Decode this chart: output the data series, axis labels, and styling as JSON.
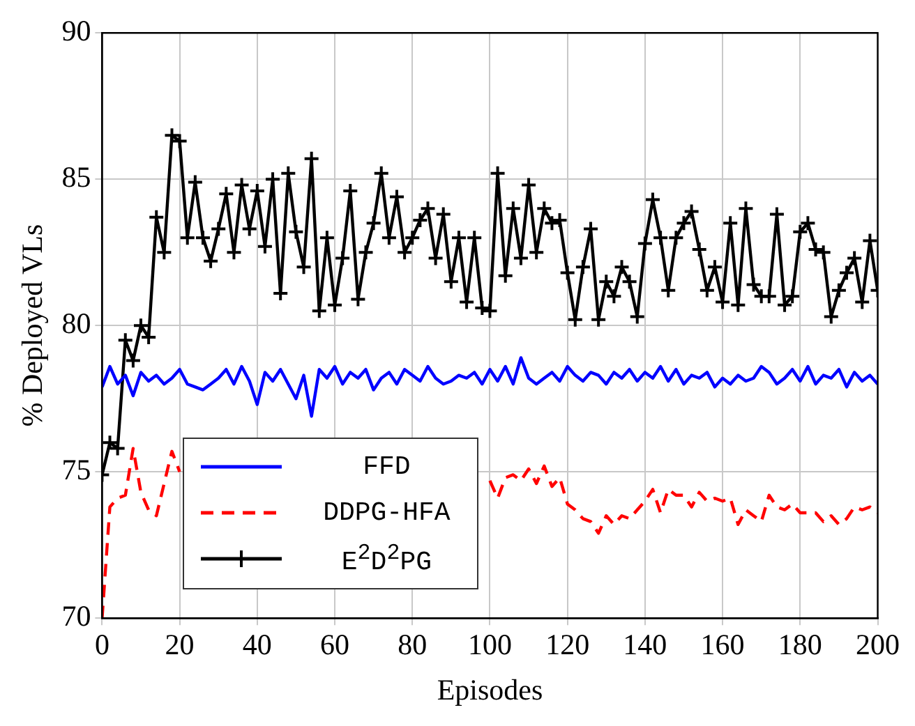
{
  "chart_data": {
    "type": "line",
    "xlabel": "Episodes",
    "ylabel": "% Deployed VLs",
    "x": [
      0,
      2,
      4,
      6,
      8,
      10,
      12,
      14,
      16,
      18,
      20,
      22,
      24,
      26,
      28,
      30,
      32,
      34,
      36,
      38,
      40,
      42,
      44,
      46,
      48,
      50,
      52,
      54,
      56,
      58,
      60,
      62,
      64,
      66,
      68,
      70,
      72,
      74,
      76,
      78,
      80,
      82,
      84,
      86,
      88,
      90,
      92,
      94,
      96,
      98,
      100,
      102,
      104,
      106,
      108,
      110,
      112,
      114,
      116,
      118,
      120,
      122,
      124,
      126,
      128,
      130,
      132,
      134,
      136,
      138,
      140,
      142,
      144,
      146,
      148,
      150,
      152,
      154,
      156,
      158,
      160,
      162,
      164,
      166,
      168,
      170,
      172,
      174,
      176,
      178,
      180,
      182,
      184,
      186,
      188,
      190,
      192,
      194,
      196,
      198,
      200
    ],
    "series": [
      {
        "name": "FFD",
        "color": "#0000ff",
        "marker": "none",
        "line_style": "solid",
        "values": [
          77.9,
          78.6,
          78.0,
          78.3,
          77.6,
          78.4,
          78.1,
          78.3,
          78.0,
          78.2,
          78.5,
          78.0,
          77.9,
          77.8,
          78.0,
          78.2,
          78.5,
          78.0,
          78.6,
          78.1,
          77.3,
          78.4,
          78.1,
          78.5,
          78.0,
          77.5,
          78.3,
          76.9,
          78.5,
          78.2,
          78.6,
          78.0,
          78.4,
          78.2,
          78.5,
          77.8,
          78.2,
          78.4,
          78.0,
          78.5,
          78.3,
          78.1,
          78.6,
          78.2,
          78.0,
          78.1,
          78.3,
          78.2,
          78.4,
          78.0,
          78.5,
          78.1,
          78.6,
          78.0,
          78.9,
          78.2,
          78.0,
          78.2,
          78.4,
          78.1,
          78.6,
          78.3,
          78.1,
          78.4,
          78.3,
          78.0,
          78.4,
          78.2,
          78.5,
          78.1,
          78.4,
          78.2,
          78.6,
          78.1,
          78.5,
          78.0,
          78.3,
          78.2,
          78.4,
          77.9,
          78.2,
          78.0,
          78.3,
          78.1,
          78.2,
          78.6,
          78.4,
          78.0,
          78.2,
          78.5,
          78.1,
          78.6,
          78.0,
          78.3,
          78.2,
          78.5,
          77.9,
          78.4,
          78.1,
          78.3,
          78.0
        ]
      },
      {
        "name": "DDPG-HFA",
        "color": "#ff0000",
        "marker": "none",
        "line_style": "dashed",
        "values": [
          70.0,
          73.8,
          74.1,
          74.2,
          75.8,
          74.3,
          73.7,
          73.5,
          74.6,
          75.7,
          75.0,
          null,
          null,
          null,
          null,
          null,
          null,
          null,
          null,
          null,
          null,
          null,
          null,
          null,
          null,
          null,
          null,
          null,
          null,
          null,
          null,
          null,
          null,
          null,
          null,
          null,
          null,
          null,
          null,
          null,
          null,
          null,
          null,
          null,
          null,
          null,
          null,
          null,
          null,
          null,
          74.7,
          74.1,
          74.8,
          74.9,
          74.7,
          75.1,
          74.6,
          75.2,
          74.5,
          74.8,
          73.9,
          73.7,
          73.4,
          73.3,
          72.9,
          73.5,
          73.2,
          73.5,
          73.4,
          73.7,
          74.0,
          74.4,
          73.6,
          74.4,
          74.2,
          74.2,
          73.8,
          74.3,
          74.0,
          74.1,
          74.0,
          74.1,
          73.2,
          73.7,
          73.5,
          73.3,
          74.2,
          73.8,
          73.7,
          73.9,
          73.6,
          73.6,
          73.6,
          73.3,
          73.5,
          73.2,
          73.4,
          73.8,
          73.7,
          73.8,
          73.6
        ]
      },
      {
        "name": "E$^{2}$D$^{2}$PG",
        "color": "#000000",
        "marker": "cross",
        "line_style": "solid",
        "values": [
          74.9,
          76.0,
          75.8,
          79.5,
          78.8,
          80.0,
          79.6,
          83.7,
          82.5,
          86.5,
          86.3,
          83.0,
          84.9,
          83.0,
          82.2,
          83.3,
          84.5,
          82.5,
          84.8,
          83.3,
          84.6,
          82.7,
          85.0,
          81.1,
          85.2,
          83.2,
          82.0,
          85.7,
          80.5,
          83.0,
          80.7,
          82.3,
          84.6,
          80.9,
          82.5,
          83.5,
          85.2,
          83.0,
          84.4,
          82.5,
          83.0,
          83.6,
          84.0,
          82.3,
          83.8,
          81.5,
          83.0,
          80.8,
          83.0,
          80.6,
          80.5,
          85.2,
          81.7,
          84.0,
          82.3,
          84.8,
          82.5,
          84.0,
          83.5,
          83.6,
          81.8,
          80.2,
          82.0,
          83.3,
          80.2,
          81.5,
          81.0,
          82.0,
          81.5,
          80.3,
          82.8,
          84.3,
          83.0,
          81.2,
          83.0,
          83.5,
          83.9,
          82.6,
          81.2,
          82.0,
          80.8,
          83.5,
          80.7,
          84.0,
          81.4,
          81.0,
          81.0,
          83.8,
          80.7,
          81.0,
          83.2,
          83.5,
          82.6,
          82.5,
          80.3,
          81.2,
          81.8,
          82.3,
          80.8,
          82.9,
          81.2
        ]
      }
    ],
    "xlim": [
      0,
      200
    ],
    "xticks": [
      0,
      20,
      40,
      60,
      80,
      100,
      120,
      140,
      160,
      180,
      200
    ],
    "ylim": [
      70,
      90
    ],
    "yticks": [
      70,
      75,
      80,
      85,
      90
    ],
    "grid": true,
    "legend": "bottom left"
  }
}
